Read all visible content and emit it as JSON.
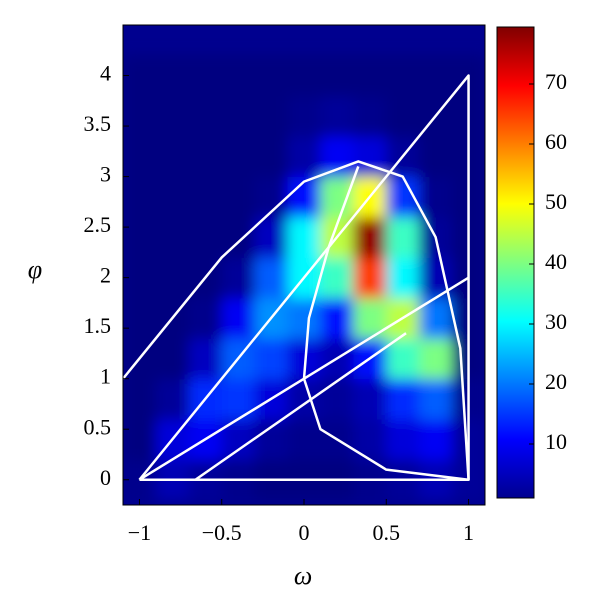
{
  "chart_data": {
    "type": "contourf",
    "x_label": "ω",
    "y_label": "φ",
    "xlim": [
      -1.1,
      1.1
    ],
    "ylim": [
      -0.25,
      4.5
    ],
    "xticks": [
      {
        "value": -1,
        "label": "−1"
      },
      {
        "value": -0.5,
        "label": "−0.5"
      },
      0,
      0.5,
      1
    ],
    "yticks": [
      0,
      0.5,
      1,
      1.5,
      2,
      2.5,
      3,
      3.5,
      4
    ],
    "clim": [
      1,
      79.5
    ],
    "cticks": [
      10,
      20,
      30,
      40,
      50,
      60,
      70
    ],
    "colormap": "jet",
    "x_grid": [
      -1,
      -0.8,
      -0.6,
      -0.4,
      -0.2,
      0,
      0.2,
      0.4,
      0.6,
      0.8,
      1
    ],
    "y_grid": [
      0,
      0.4,
      0.8,
      1.2,
      1.6,
      2.0,
      2.4,
      2.8,
      3.2,
      3.6,
      4.0
    ],
    "z": [
      [
        2,
        5,
        3,
        2,
        1,
        1,
        1,
        2,
        3,
        5,
        3
      ],
      [
        1,
        8,
        10,
        6,
        3,
        2,
        2,
        4,
        8,
        10,
        3
      ],
      [
        1,
        3,
        14,
        15,
        8,
        4,
        3,
        5,
        14,
        18,
        2
      ],
      [
        1,
        1,
        6,
        18,
        16,
        8,
        5,
        12,
        35,
        40,
        1
      ],
      [
        1,
        1,
        2,
        10,
        22,
        20,
        12,
        40,
        45,
        20,
        1
      ],
      [
        1,
        1,
        1,
        3,
        18,
        30,
        35,
        65,
        30,
        5,
        1
      ],
      [
        1,
        1,
        1,
        1,
        6,
        30,
        45,
        78,
        35,
        3,
        1
      ],
      [
        1,
        1,
        1,
        1,
        2,
        12,
        40,
        50,
        15,
        2,
        1
      ],
      [
        1,
        1,
        1,
        1,
        1,
        4,
        10,
        8,
        3,
        1,
        1
      ],
      [
        1,
        1,
        1,
        1,
        1,
        2,
        3,
        2,
        1,
        1,
        1
      ],
      [
        1,
        1,
        1,
        1,
        1,
        1,
        1,
        1,
        1,
        1,
        1
      ]
    ],
    "overlay_color": "#ffffff",
    "overlays": [
      {
        "x": [
          -1,
          1,
          1,
          -1
        ],
        "y": [
          0,
          0,
          4,
          0
        ]
      },
      {
        "x": [
          -1,
          1
        ],
        "y": [
          0,
          2
        ]
      },
      {
        "x": [
          -0.66,
          0.62
        ],
        "y": [
          0,
          1.45
        ]
      },
      {
        "x": [
          -1.1,
          -0.5,
          0,
          0.33,
          0.6,
          0.8,
          0.95,
          1
        ],
        "y": [
          1,
          2.2,
          2.95,
          3.15,
          3.0,
          2.4,
          1.3,
          0
        ]
      },
      {
        "x": [
          0.33,
          0.15,
          0.03,
          0,
          0.1,
          0.5,
          1
        ],
        "y": [
          3.1,
          2.3,
          1.6,
          1.0,
          0.5,
          0.1,
          0
        ]
      }
    ]
  }
}
